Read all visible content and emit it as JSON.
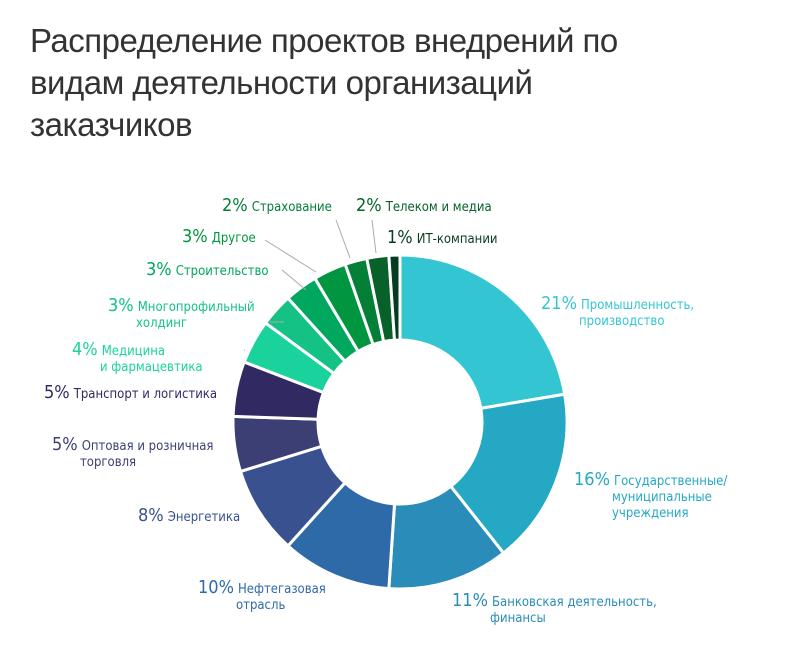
{
  "chart_data": {
    "type": "pie",
    "title": "Распределение проектов внедрений по видам деятельности организаций заказчиков",
    "unit": "%",
    "slices": [
      {
        "name": "Промышленность, производство",
        "lines": [
          "Промышленность,",
          "производство"
        ],
        "value": 21,
        "pct": "21%",
        "color": "#33c6d2"
      },
      {
        "name": "Государственные/муниципальные учреждения",
        "lines": [
          "Государственные/",
          "муниципальные",
          "учреждения"
        ],
        "value": 16,
        "pct": "16%",
        "color": "#25a8c3"
      },
      {
        "name": "Банковская деятельность, финансы",
        "lines": [
          "Банковская деятельность,",
          "финансы"
        ],
        "value": 11,
        "pct": "11%",
        "color": "#2a8cb8"
      },
      {
        "name": "Нефтегазовая отрасль",
        "lines": [
          "Нефтегазовая",
          "отрасль"
        ],
        "value": 10,
        "pct": "10%",
        "color": "#2f6aa8"
      },
      {
        "name": "Энергетика",
        "lines": [
          "Энергетика"
        ],
        "value": 8,
        "pct": "8%",
        "color": "#3a5190"
      },
      {
        "name": "Оптовая и розничная торговля",
        "lines": [
          "Оптовая и розничная",
          "торговля"
        ],
        "value": 5,
        "pct": "5%",
        "color": "#3c3f74"
      },
      {
        "name": "Транспорт и логистика",
        "lines": [
          "Транспорт и логистика"
        ],
        "value": 5,
        "pct": "5%",
        "color": "#312a62"
      },
      {
        "name": "Медицина и фармацевтика",
        "lines": [
          "Медицина",
          "и фармацевтика"
        ],
        "value": 4,
        "pct": "4%",
        "color": "#1ad39c"
      },
      {
        "name": "Многопрофильный холдинг",
        "lines": [
          "Многопрофильный",
          "холдинг"
        ],
        "value": 3,
        "pct": "3%",
        "color": "#14c286"
      },
      {
        "name": "Строительство",
        "lines": [
          "Строительство"
        ],
        "value": 3,
        "pct": "3%",
        "color": "#00a75f"
      },
      {
        "name": "Другое",
        "lines": [
          "Другое"
        ],
        "value": 3,
        "pct": "3%",
        "color": "#00953f"
      },
      {
        "name": "Страхование",
        "lines": [
          "Страхование"
        ],
        "value": 2,
        "pct": "2%",
        "color": "#047f38"
      },
      {
        "name": "Телеком и медиа",
        "lines": [
          "Телеком и медиа"
        ],
        "value": 2,
        "pct": "2%",
        "color": "#076129"
      },
      {
        "name": "ИТ-компании",
        "lines": [
          "ИТ-компании"
        ],
        "value": 1,
        "pct": "1%",
        "color": "#063d22"
      }
    ]
  }
}
